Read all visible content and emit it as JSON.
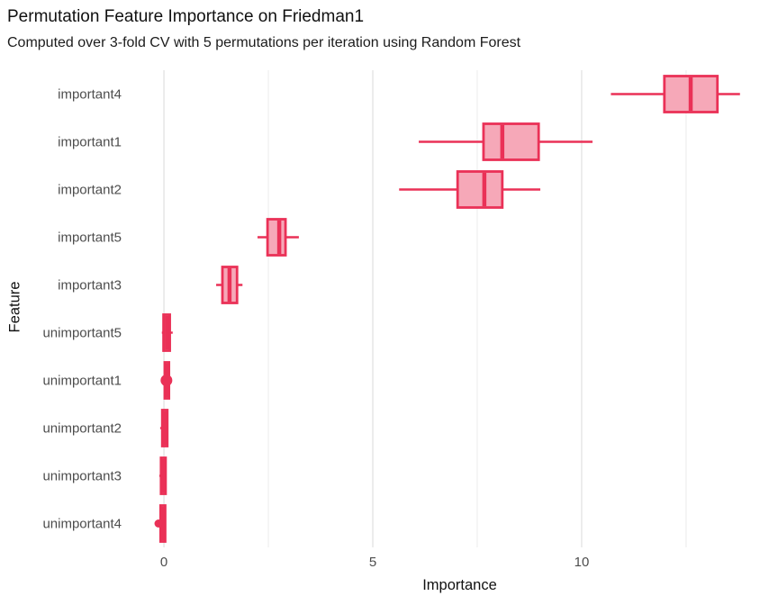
{
  "chart_data": {
    "type": "boxplot",
    "orientation": "horizontal",
    "title": "Permutation Feature Importance on Friedman1",
    "subtitle": "Computed over 3-fold CV with 5 permutations per iteration using Random Forest",
    "xlabel": "Importance",
    "ylabel": "Feature",
    "xlim": [
      -0.26,
      14.42
    ],
    "x_major_ticks": [
      0,
      5,
      10
    ],
    "x_minor_ticks": [
      2.5,
      7.5,
      12.5
    ],
    "grid": "vertical major + minor gridlines, no axis lines, no legend",
    "legend": "none",
    "categories": [
      "important4",
      "important1",
      "important2",
      "important5",
      "important3",
      "unimportant5",
      "unimportant1",
      "unimportant2",
      "unimportant3",
      "unimportant4"
    ],
    "boxes": [
      {
        "label": "important4",
        "whisker_low": 10.7,
        "q1": 11.98,
        "median": 12.61,
        "q3": 13.25,
        "whisker_high": 13.79,
        "outliers": []
      },
      {
        "label": "important1",
        "whisker_low": 6.1,
        "q1": 7.65,
        "median": 8.1,
        "q3": 8.97,
        "whisker_high": 10.26,
        "outliers": []
      },
      {
        "label": "important2",
        "whisker_low": 5.63,
        "q1": 7.03,
        "median": 7.67,
        "q3": 8.1,
        "whisker_high": 9.01,
        "outliers": []
      },
      {
        "label": "important5",
        "whisker_low": 2.24,
        "q1": 2.48,
        "median": 2.76,
        "q3": 2.91,
        "whisker_high": 3.23,
        "outliers": []
      },
      {
        "label": "important3",
        "whisker_low": 1.25,
        "q1": 1.4,
        "median": 1.57,
        "q3": 1.75,
        "whisker_high": 1.88,
        "outliers": []
      },
      {
        "label": "unimportant5",
        "whisker_low": -0.05,
        "q1": -0.01,
        "median": 0.07,
        "q3": 0.14,
        "whisker_high": 0.21,
        "outliers": []
      },
      {
        "label": "unimportant1",
        "whisker_low": -0.03,
        "q1": 0.02,
        "median": 0.07,
        "q3": 0.12,
        "whisker_high": 0.16,
        "outliers": [
          {
            "value": 0.06,
            "r": 6.5
          }
        ]
      },
      {
        "label": "unimportant2",
        "whisker_low": -0.09,
        "q1": -0.04,
        "median": 0.01,
        "q3": 0.08,
        "whisker_high": 0.1,
        "outliers": []
      },
      {
        "label": "unimportant3",
        "whisker_low": -0.11,
        "q1": -0.07,
        "median": -0.02,
        "q3": 0.04,
        "whisker_high": 0.06,
        "outliers": []
      },
      {
        "label": "unimportant4",
        "whisker_low": -0.13,
        "q1": -0.08,
        "median": -0.03,
        "q3": 0.03,
        "whisker_high": 0.05,
        "outliers": [
          {
            "value": -0.13,
            "r": 4.5
          }
        ]
      }
    ],
    "colors": {
      "box_fill": "#f6a8b8",
      "box_stroke": "#ea3157",
      "grid_major": "#e4e4e4",
      "grid_minor": "#efefef",
      "tick_label": "#4d4d4d",
      "axis_title": "#111111",
      "title": "#111111",
      "background": "#ffffff"
    }
  }
}
